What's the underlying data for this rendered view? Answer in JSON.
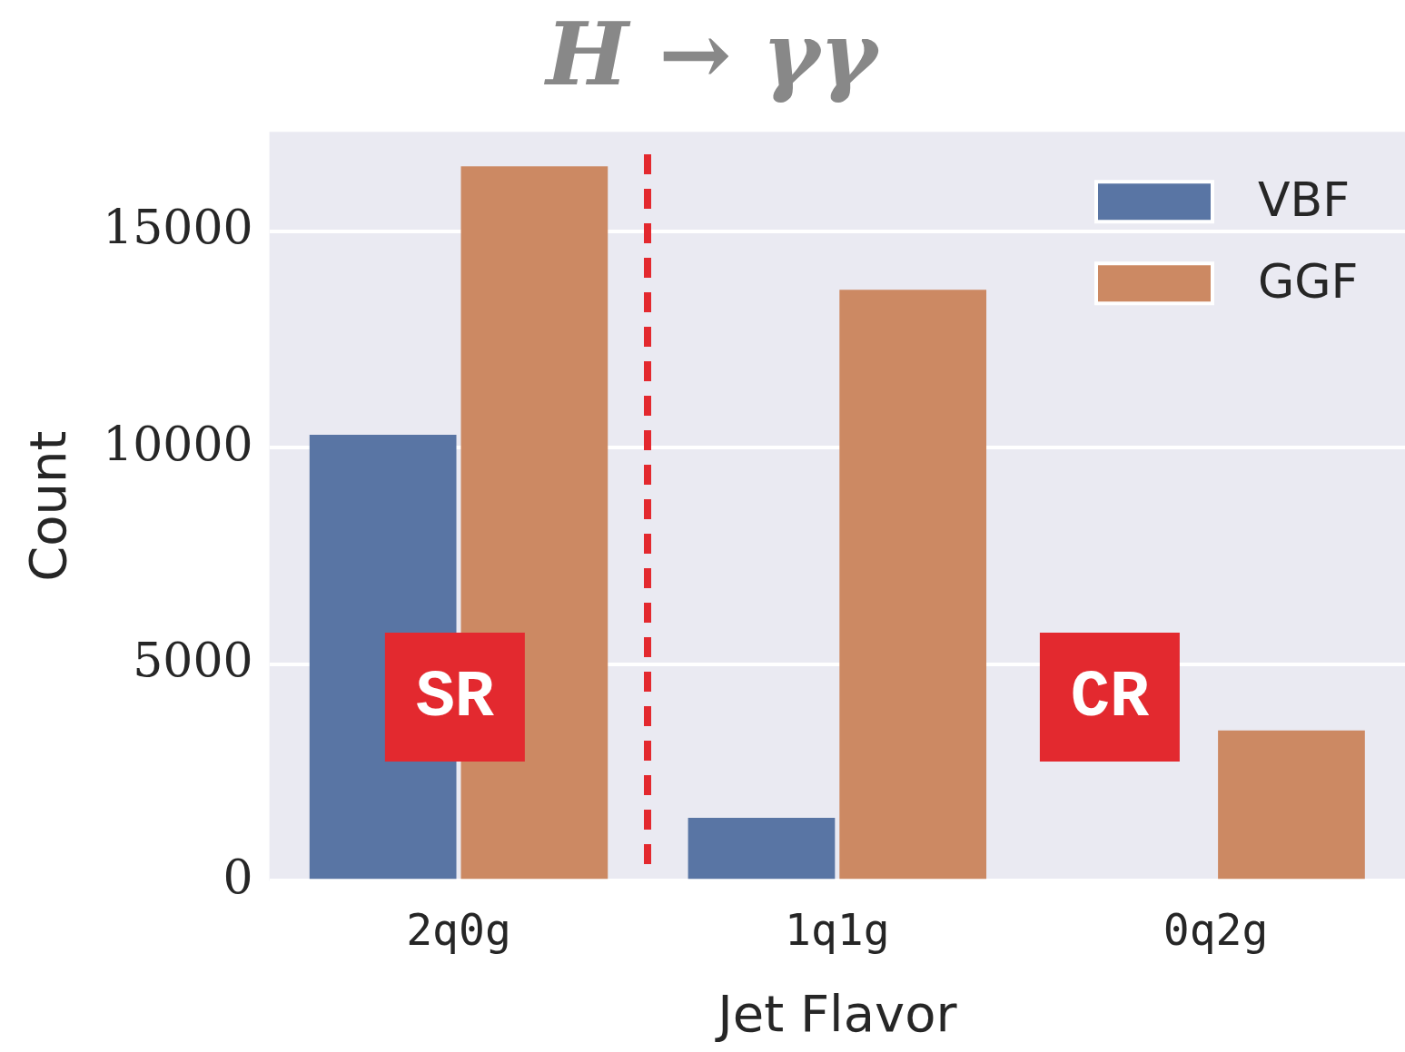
{
  "chart_data": {
    "type": "bar",
    "title": "H → γγ",
    "xlabel": "Jet Flavor",
    "ylabel": "Count",
    "categories": [
      "2q0g",
      "1q1g",
      "0q2g"
    ],
    "series": [
      {
        "name": "VBF",
        "color": "#5975a4",
        "values": [
          10300,
          1450,
          null
        ]
      },
      {
        "name": "GGF",
        "color": "#cc8963",
        "values": [
          16500,
          13650,
          3470
        ]
      }
    ],
    "ylim": [
      0,
      17300
    ],
    "yticks": [
      0,
      5000,
      10000,
      15000
    ],
    "grid": "y",
    "legend": "top right",
    "annotations": [
      "SR",
      "CR"
    ]
  }
}
